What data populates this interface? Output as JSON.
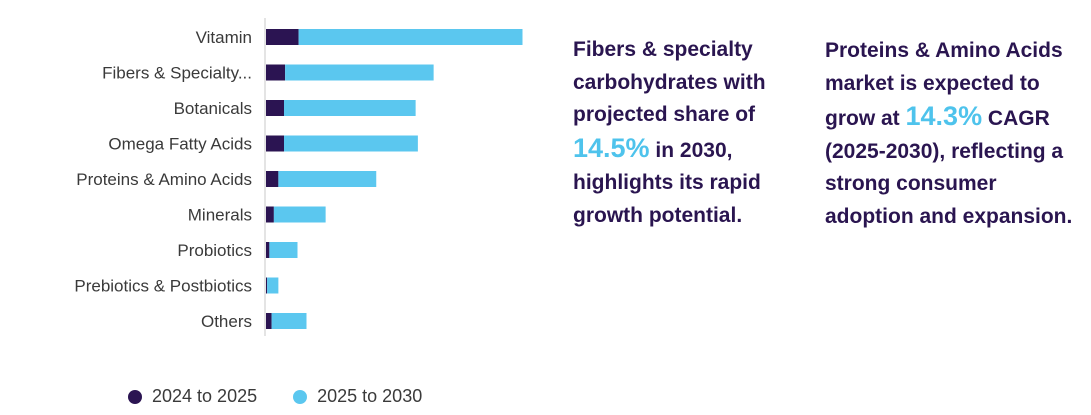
{
  "chart_data": {
    "type": "bar",
    "orientation": "horizontal",
    "stacked": true,
    "categories": [
      "Vitamin",
      "Fibers & Specialty...",
      "Botanicals",
      "Omega Fatty Acids",
      "Proteins & Amino Acids",
      "Minerals",
      "Probiotics",
      "Prebiotics & Postbiotics",
      "Others"
    ],
    "series": [
      {
        "name": "2024 to 2025",
        "values": [
          29,
          17,
          16,
          16,
          11,
          7,
          3,
          1,
          5
        ]
      },
      {
        "name": "2025 to 2030",
        "values": [
          199,
          132,
          117,
          119,
          87,
          46,
          25,
          10,
          31
        ]
      }
    ],
    "xlim": [
      0,
      240
    ],
    "grid": false,
    "legend_position": "bottom-left",
    "colors": {
      "2024 to 2025": "#2b1452",
      "2025 to 2030": "#5bc7ef"
    }
  },
  "legend": [
    {
      "label": "2024 to 2025",
      "color": "#2b1452"
    },
    {
      "label": "2025 to 2030",
      "color": "#5bc7ef"
    }
  ],
  "callouts": {
    "fibers": {
      "before": "Fibers & specialty carbohydrates with projected share of",
      "highlight": "14.5%",
      "after": "in 2030, highlights its rapid growth potential."
    },
    "proteins": {
      "before": "Proteins & Amino Acids market is expected to grow at",
      "highlight": "14.3%",
      "after": "CAGR (2025-2030), reflecting a strong consumer adoption and expansion."
    }
  }
}
